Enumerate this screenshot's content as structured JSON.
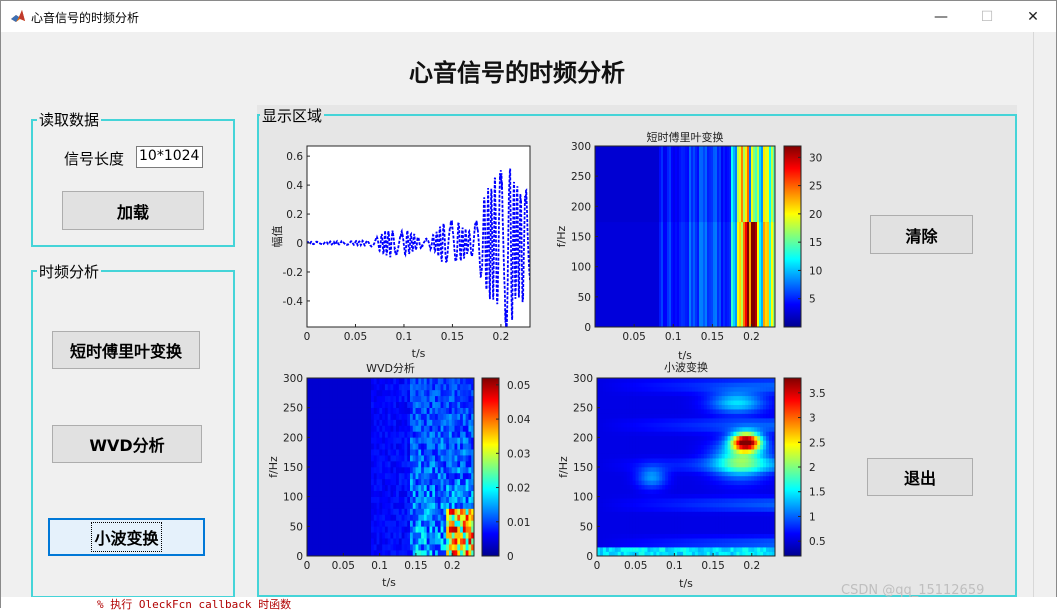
{
  "window": {
    "title": "心音信号的时频分析",
    "minimize_glyph": "—",
    "maximize_glyph": "☐",
    "close_glyph": "✕",
    "icon": "matlab-logo-icon"
  },
  "main_title": "心音信号的时频分析",
  "read_panel": {
    "label": "读取数据",
    "length_label": "信号长度",
    "length_value": "10*1024",
    "load_button": "加载"
  },
  "tf_panel": {
    "label": "时频分析",
    "stft_button": "短时傅里叶变换",
    "wvd_button": "WVD分析",
    "wavelet_button": "小波变换"
  },
  "display_panel": {
    "label": "显示区域",
    "clear_button": "清除",
    "exit_button": "退出"
  },
  "chart_data": [
    {
      "type": "line",
      "title": "",
      "xlabel": "t/s",
      "ylabel": "幅值",
      "xlim": [
        0,
        0.23
      ],
      "ylim": [
        -0.58,
        0.67
      ],
      "xticks": [
        "0",
        "0.05",
        "0.1",
        "0.15",
        "0.2"
      ],
      "yticks": [
        "0.6",
        "0.4",
        "0.2",
        "0",
        "-0.2",
        "-0.4"
      ],
      "series": [
        {
          "values": "dashed blue waveform, amplitude growing from ~0 at t=0 to ~±0.65 near t=0.2 s"
        }
      ],
      "color": "#0000ff"
    },
    {
      "type": "heatmap",
      "title": "短时傅里叶变换",
      "xlabel": "t/s",
      "ylabel": "f/Hz",
      "xlim": [
        0,
        0.23
      ],
      "ylim": [
        0,
        300
      ],
      "xticks": [
        "0.05",
        "0.1",
        "0.15",
        "0.2"
      ],
      "yticks": [
        "300",
        "250",
        "200",
        "150",
        "100",
        "50",
        "0"
      ],
      "colorbar": {
        "range": [
          0,
          32
        ],
        "ticks": [
          "30",
          "25",
          "20",
          "15",
          "10",
          "5"
        ]
      }
    },
    {
      "type": "heatmap",
      "title": "WVD分析",
      "xlabel": "t/s",
      "ylabel": "f/Hz",
      "xlim": [
        0,
        0.23
      ],
      "ylim": [
        0,
        300
      ],
      "xticks": [
        "0",
        "0.05",
        "0.1",
        "0.15",
        "0.2"
      ],
      "yticks": [
        "300",
        "250",
        "200",
        "150",
        "100",
        "50",
        "0"
      ],
      "colorbar": {
        "range": [
          0,
          0.052
        ],
        "ticks": [
          "0.05",
          "0.04",
          "0.03",
          "0.02",
          "0.01",
          "0"
        ]
      }
    },
    {
      "type": "heatmap",
      "title": "小波变换",
      "xlabel": "t/s",
      "ylabel": "f/Hz",
      "xlim": [
        0,
        0.23
      ],
      "ylim": [
        0,
        300
      ],
      "xticks": [
        "0",
        "0.05",
        "0.1",
        "0.15",
        "0.2"
      ],
      "yticks": [
        "300",
        "250",
        "200",
        "150",
        "100",
        "50",
        "0"
      ],
      "colorbar": {
        "range": [
          0.2,
          3.8
        ],
        "ticks": [
          "3.5",
          "3",
          "2.5",
          "2",
          "1.5",
          "1",
          "0.5"
        ]
      }
    }
  ],
  "footer": {
    "code_text": "% 执行 OleckFcn callback 时函数",
    "watermark": "CSDN @qq_15112659"
  }
}
